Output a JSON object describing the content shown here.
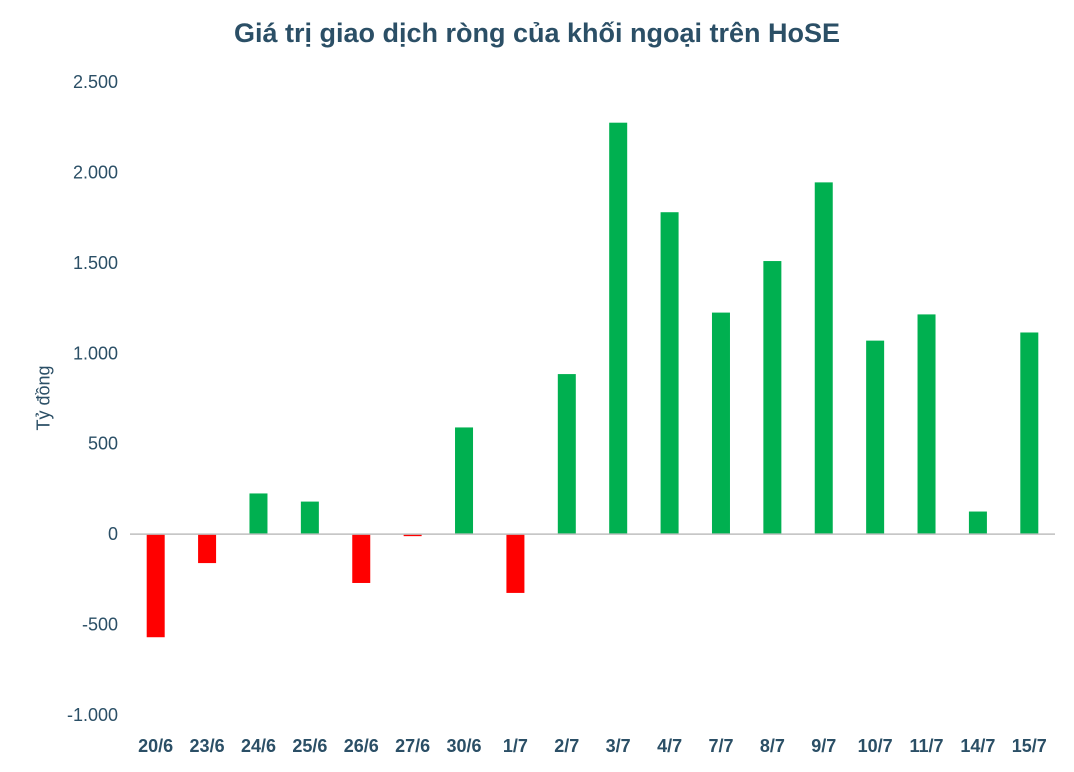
{
  "chart_data": {
    "type": "bar",
    "title": "Giá trị giao dịch ròng của khối ngoại trên HoSE",
    "ylabel": "Tỷ đồng",
    "xlabel": "",
    "ylim": [
      -1000,
      2500
    ],
    "yticks": [
      -1000,
      -500,
      0,
      500,
      1000,
      1500,
      2000,
      2500
    ],
    "ytick_labels": [
      "-1.000",
      "-500",
      "0",
      "500",
      "1.000",
      "1.500",
      "2.000",
      "2.500"
    ],
    "categories": [
      "20/6",
      "23/6",
      "24/6",
      "25/6",
      "26/6",
      "27/6",
      "30/6",
      "1/7",
      "2/7",
      "3/7",
      "4/7",
      "7/7",
      "8/7",
      "9/7",
      "10/7",
      "11/7",
      "14/7",
      "15/7"
    ],
    "values": [
      -570,
      -160,
      225,
      180,
      -270,
      -10,
      590,
      -325,
      885,
      2275,
      1780,
      1225,
      1510,
      1945,
      1070,
      1215,
      125,
      1115
    ],
    "grid": false,
    "legend": "none",
    "colors": {
      "positive": "#00b050",
      "negative": "#ff0000",
      "axis": "#bfbfbf",
      "text": "#2b4f66"
    }
  }
}
